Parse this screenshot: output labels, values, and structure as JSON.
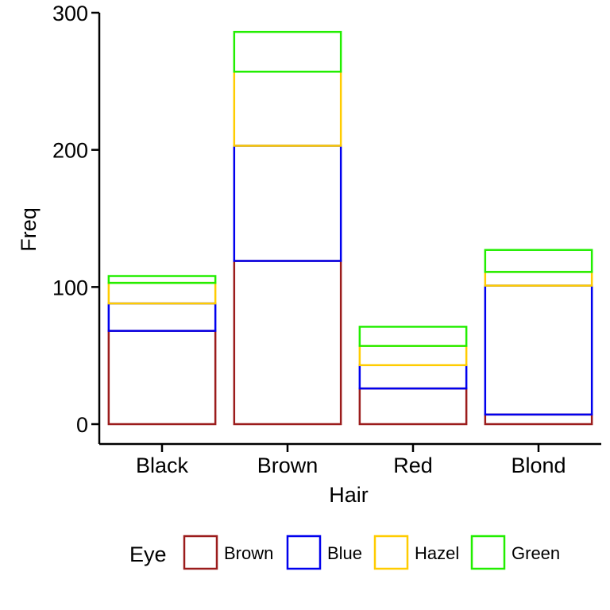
{
  "chart_data": {
    "type": "bar",
    "stacked": true,
    "bar_fill": "none",
    "categories": [
      "Black",
      "Brown",
      "Red",
      "Blond"
    ],
    "series": [
      {
        "name": "Brown",
        "color": "#9b1c1c",
        "values": [
          68,
          119,
          26,
          7
        ]
      },
      {
        "name": "Blue",
        "color": "#0000ee",
        "values": [
          20,
          84,
          17,
          94
        ]
      },
      {
        "name": "Hazel",
        "color": "#ffcc00",
        "values": [
          15,
          54,
          14,
          10
        ]
      },
      {
        "name": "Green",
        "color": "#22ee00",
        "values": [
          5,
          29,
          14,
          16
        ]
      }
    ],
    "xlabel": "Hair",
    "ylabel": "Freq",
    "ylim": [
      0,
      300
    ],
    "yticks": [
      0,
      100,
      200,
      300
    ],
    "grid": false,
    "legend": {
      "title": "Eye",
      "position": "bottom"
    }
  }
}
